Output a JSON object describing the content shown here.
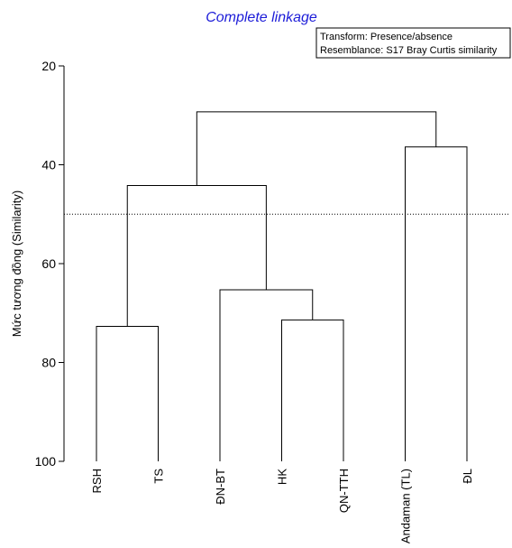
{
  "chart_data": {
    "type": "dendrogram",
    "title": "Complete linkage",
    "annotations": [
      "Transform: Presence/absence",
      "Resemblance: S17 Bray Curtis similarity"
    ],
    "ylabel": "Mức tương đồng (Similarity)",
    "xlabel": "",
    "ylim": [
      20,
      100
    ],
    "y_axis_inverted": true,
    "yticks": [
      20,
      40,
      60,
      80,
      100
    ],
    "leaves": [
      "RSH",
      "TS",
      "ĐN-BT",
      "HK",
      "QN-TTH",
      "Andaman (TL)",
      "ĐL"
    ],
    "merges": [
      {
        "left": "leaf:4",
        "right": "leaf:5",
        "similarity": 71.4
      },
      {
        "left": "leaf:1",
        "right": "leaf:2",
        "similarity": 72.7
      },
      {
        "left": "leaf:3",
        "right": "node:1",
        "similarity": 65.3
      },
      {
        "left": "leaf:6",
        "right": "leaf:7",
        "similarity": 36.4
      },
      {
        "left": "node:2",
        "right": "node:3",
        "similarity": 44.2
      },
      {
        "left": "node:5",
        "right": "node:4",
        "similarity": 29.3
      }
    ],
    "cut_line_similarity": 50,
    "grid": false
  }
}
